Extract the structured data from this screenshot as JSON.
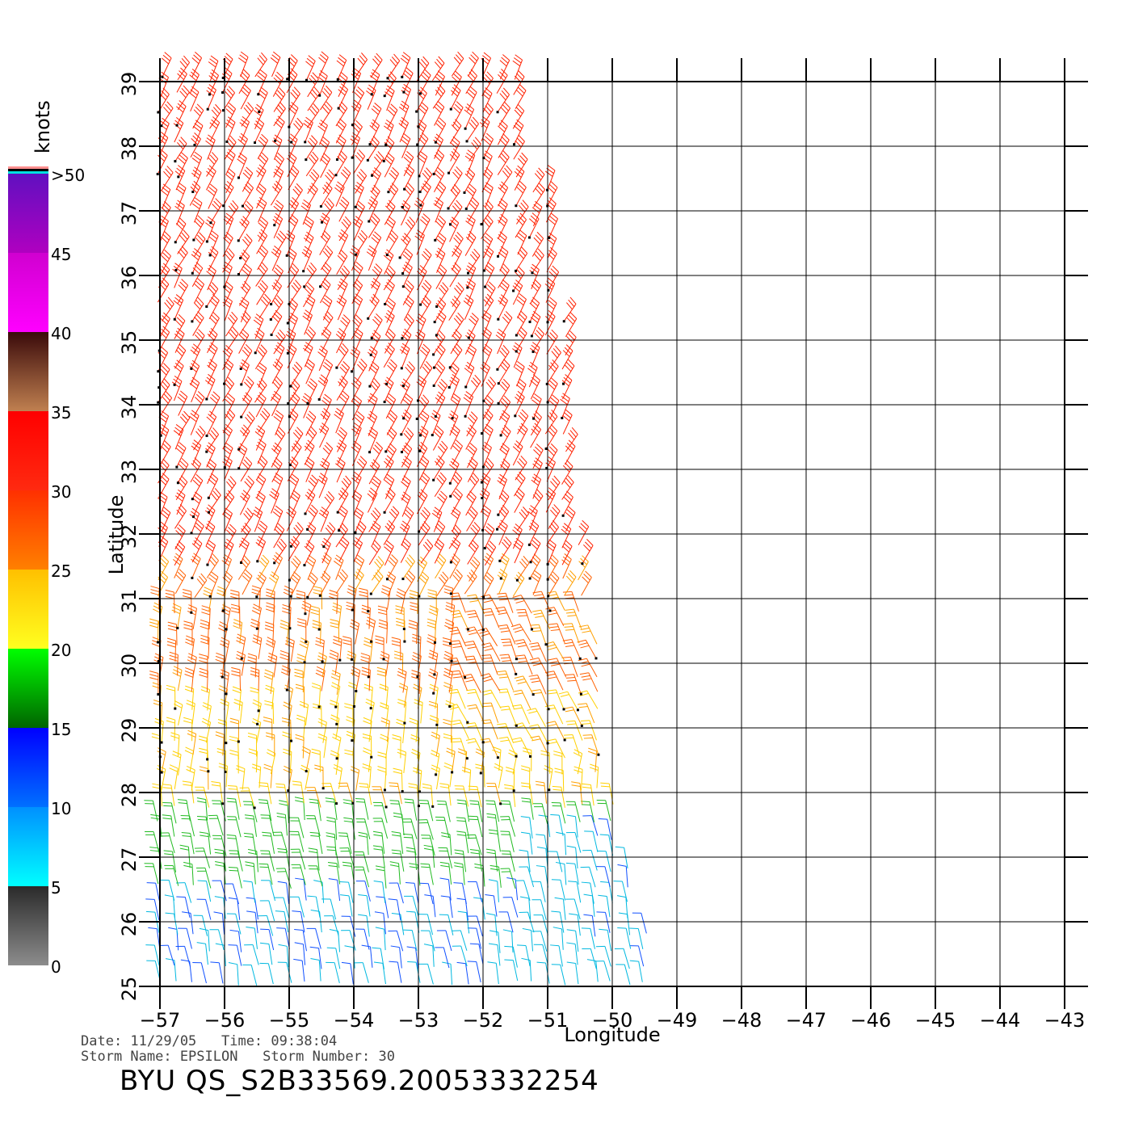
{
  "map": {
    "lon_ticks": [
      -57,
      -56,
      -55,
      -54,
      -53,
      -52,
      -51,
      -50,
      -49,
      -48,
      -47,
      -46,
      -45,
      -44,
      -43
    ],
    "lat_ticks": [
      25,
      26,
      27,
      28,
      29,
      30,
      31,
      32,
      33,
      34,
      35,
      36,
      37,
      38,
      39
    ],
    "lon_range": [
      -57,
      -43
    ],
    "lat_range": [
      25,
      39
    ],
    "xlabel": "Longitude",
    "ylabel": "Latitude",
    "grid": true
  },
  "colorbar": {
    "unit_label": "knots",
    "tick_labels": [
      "0",
      "5",
      "10",
      "15",
      "20",
      "25",
      "30",
      "35",
      "40",
      "45",
      ">50"
    ],
    "bands": [
      {
        "min": 0,
        "max": 5,
        "colors": [
          "#8c8c8c",
          "#2a2a2a"
        ]
      },
      {
        "min": 5,
        "max": 10,
        "colors": [
          "#00ffff",
          "#0090ff"
        ]
      },
      {
        "min": 10,
        "max": 15,
        "colors": [
          "#0070ff",
          "#0000ff"
        ]
      },
      {
        "min": 15,
        "max": 20,
        "colors": [
          "#006400",
          "#00ff00"
        ]
      },
      {
        "min": 20,
        "max": 25,
        "colors": [
          "#ffff20",
          "#ffc000"
        ]
      },
      {
        "min": 25,
        "max": 30,
        "colors": [
          "#ff8000",
          "#ff3000"
        ]
      },
      {
        "min": 30,
        "max": 35,
        "colors": [
          "#ff2a10",
          "#ff0000"
        ]
      },
      {
        "min": 35,
        "max": 40,
        "colors": [
          "#c08050",
          "#3a0a0a"
        ]
      },
      {
        "min": 40,
        "max": 45,
        "colors": [
          "#ff00ff",
          "#d000d0"
        ]
      },
      {
        "min": 45,
        "max": 50,
        "colors": [
          "#b000c0",
          "#6010c0"
        ]
      }
    ],
    "top_stripes": [
      "#00e0e0",
      "#000000",
      "#ff9090"
    ]
  },
  "wind_field": {
    "description_speed_regions": [
      {
        "lat_min": 31.5,
        "speed": 33
      },
      {
        "lat_min": 29.5,
        "speed": 28
      },
      {
        "lat_min": 27.8,
        "speed": 22
      },
      {
        "lat_min": 26.5,
        "speed": 18
      },
      {
        "lat_min": 25,
        "speed": 12
      }
    ]
  },
  "info": {
    "line1": "Date: 11/29/05   Time: 09:38:04",
    "line2": "Storm Name: EPSILON   Storm Number: 30"
  },
  "title": "BYU  QS_S2B33569.20053332254"
}
